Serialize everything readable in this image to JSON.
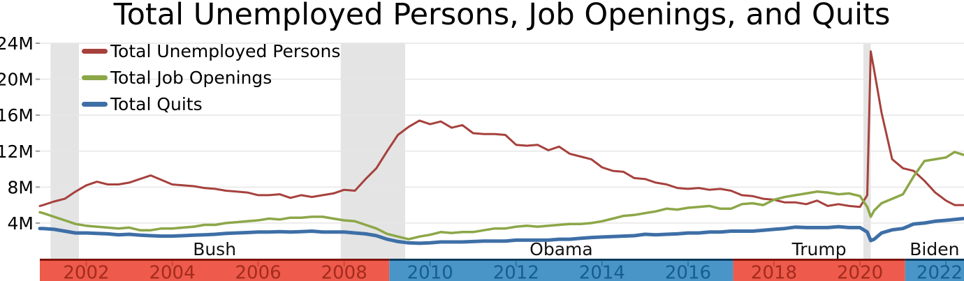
{
  "chart_data": {
    "type": "line",
    "title": "Total Unemployed Persons, Job Openings, and Quits",
    "units": "millions of persons",
    "x_range": [
      2000.92,
      2022.42
    ],
    "y_range": [
      0,
      24
    ],
    "grid": "horizontal",
    "legend_position": "top-left",
    "y_ticks": [
      {
        "value": 4,
        "label": "4M"
      },
      {
        "value": 8,
        "label": "8M"
      },
      {
        "value": 12,
        "label": "12M"
      },
      {
        "value": 16,
        "label": "16M"
      },
      {
        "value": 20,
        "label": "20M"
      },
      {
        "value": 24,
        "label": "24M"
      }
    ],
    "x_ticks": [
      {
        "value": 2002,
        "label": "2002"
      },
      {
        "value": 2004,
        "label": "2004"
      },
      {
        "value": 2006,
        "label": "2006"
      },
      {
        "value": 2008,
        "label": "2008"
      },
      {
        "value": 2010,
        "label": "2010"
      },
      {
        "value": 2012,
        "label": "2012"
      },
      {
        "value": 2014,
        "label": "2014"
      },
      {
        "value": 2016,
        "label": "2016"
      },
      {
        "value": 2018,
        "label": "2018"
      },
      {
        "value": 2020,
        "label": "2020"
      },
      {
        "value": 2022,
        "label": "2022"
      }
    ],
    "x": [
      2000.92,
      2001.0,
      2001.25,
      2001.5,
      2001.75,
      2002.0,
      2002.25,
      2002.5,
      2002.75,
      2003.0,
      2003.25,
      2003.5,
      2003.75,
      2004.0,
      2004.25,
      2004.5,
      2004.75,
      2005.0,
      2005.25,
      2005.5,
      2005.75,
      2006.0,
      2006.25,
      2006.5,
      2006.75,
      2007.0,
      2007.25,
      2007.5,
      2007.75,
      2008.0,
      2008.25,
      2008.5,
      2008.75,
      2009.0,
      2009.25,
      2009.5,
      2009.75,
      2010.0,
      2010.25,
      2010.5,
      2010.75,
      2011.0,
      2011.25,
      2011.5,
      2011.75,
      2012.0,
      2012.25,
      2012.5,
      2012.75,
      2013.0,
      2013.25,
      2013.5,
      2013.75,
      2014.0,
      2014.25,
      2014.5,
      2014.75,
      2015.0,
      2015.25,
      2015.5,
      2015.75,
      2016.0,
      2016.25,
      2016.5,
      2016.75,
      2017.0,
      2017.25,
      2017.5,
      2017.75,
      2018.0,
      2018.25,
      2018.5,
      2018.75,
      2019.0,
      2019.25,
      2019.5,
      2019.75,
      2020.0,
      2020.17,
      2020.25,
      2020.33,
      2020.5,
      2020.75,
      2021.0,
      2021.25,
      2021.5,
      2021.75,
      2022.0,
      2022.2,
      2022.4
    ],
    "series": [
      {
        "name": "Total Unemployed Persons",
        "color": "#A6413D",
        "line_width": 3,
        "values": [
          5.9,
          6.0,
          6.4,
          6.7,
          7.5,
          8.2,
          8.6,
          8.3,
          8.3,
          8.5,
          8.9,
          9.3,
          8.8,
          8.3,
          8.2,
          8.1,
          7.9,
          7.8,
          7.6,
          7.5,
          7.4,
          7.1,
          7.1,
          7.2,
          6.8,
          7.1,
          6.9,
          7.1,
          7.3,
          7.7,
          7.6,
          8.9,
          10.1,
          12.0,
          13.8,
          14.7,
          15.4,
          15.0,
          15.3,
          14.6,
          14.9,
          14.0,
          13.9,
          13.9,
          13.8,
          12.7,
          12.6,
          12.7,
          12.1,
          12.5,
          11.7,
          11.4,
          11.1,
          10.2,
          9.8,
          9.7,
          9.0,
          8.9,
          8.5,
          8.3,
          7.9,
          7.8,
          7.9,
          7.7,
          7.8,
          7.6,
          7.1,
          7.0,
          6.7,
          6.6,
          6.3,
          6.3,
          6.1,
          6.5,
          5.9,
          6.1,
          5.9,
          5.8,
          7.1,
          23.1,
          21.0,
          16.3,
          11.1,
          10.1,
          9.8,
          8.7,
          7.4,
          6.5,
          6.0,
          6.0
        ]
      },
      {
        "name": "Total Job Openings",
        "color": "#8CA748",
        "line_width": 3.5,
        "values": [
          5.2,
          5.1,
          4.7,
          4.3,
          3.9,
          3.7,
          3.6,
          3.5,
          3.4,
          3.5,
          3.2,
          3.2,
          3.4,
          3.4,
          3.5,
          3.6,
          3.8,
          3.8,
          4.0,
          4.1,
          4.2,
          4.3,
          4.5,
          4.4,
          4.6,
          4.6,
          4.7,
          4.7,
          4.5,
          4.3,
          4.2,
          3.8,
          3.4,
          2.8,
          2.5,
          2.2,
          2.5,
          2.7,
          3.0,
          2.9,
          3.0,
          3.0,
          3.2,
          3.4,
          3.4,
          3.6,
          3.7,
          3.6,
          3.7,
          3.8,
          3.9,
          3.9,
          4.0,
          4.2,
          4.5,
          4.8,
          4.9,
          5.1,
          5.3,
          5.6,
          5.5,
          5.7,
          5.8,
          5.9,
          5.6,
          5.6,
          6.1,
          6.2,
          6.0,
          6.6,
          6.9,
          7.1,
          7.3,
          7.5,
          7.4,
          7.2,
          7.3,
          7.0,
          5.8,
          4.7,
          5.4,
          6.2,
          6.7,
          7.2,
          9.2,
          10.9,
          11.1,
          11.3,
          11.9,
          11.6
        ]
      },
      {
        "name": "Total Quits",
        "color": "#3E6FA6",
        "line_width": 5,
        "values": [
          3.4,
          3.4,
          3.3,
          3.1,
          2.9,
          2.9,
          2.85,
          2.8,
          2.7,
          2.75,
          2.65,
          2.6,
          2.55,
          2.55,
          2.6,
          2.65,
          2.7,
          2.75,
          2.85,
          2.9,
          2.95,
          3.0,
          3.0,
          3.05,
          3.0,
          3.05,
          3.1,
          3.0,
          3.0,
          3.0,
          2.9,
          2.8,
          2.6,
          2.2,
          1.95,
          1.8,
          1.75,
          1.8,
          1.9,
          1.9,
          1.9,
          1.95,
          2.0,
          2.0,
          2.0,
          2.1,
          2.1,
          2.1,
          2.1,
          2.2,
          2.2,
          2.3,
          2.4,
          2.45,
          2.5,
          2.55,
          2.6,
          2.75,
          2.7,
          2.75,
          2.8,
          2.9,
          2.9,
          3.0,
          3.0,
          3.1,
          3.1,
          3.1,
          3.2,
          3.3,
          3.4,
          3.55,
          3.5,
          3.5,
          3.5,
          3.6,
          3.5,
          3.5,
          3.0,
          2.05,
          2.2,
          2.9,
          3.25,
          3.4,
          3.9,
          4.0,
          4.2,
          4.3,
          4.4,
          4.5
        ]
      }
    ],
    "recessions": [
      {
        "start": 2001.17,
        "end": 2001.83
      },
      {
        "start": 2007.92,
        "end": 2009.42
      },
      {
        "start": 2020.08,
        "end": 2020.25
      }
    ],
    "presidents": [
      {
        "name": "Bush",
        "party": "R",
        "start": 2000.92,
        "end": 2009.05
      },
      {
        "name": "Obama",
        "party": "D",
        "start": 2009.05,
        "end": 2017.05
      },
      {
        "name": "Trump",
        "party": "R",
        "start": 2017.05,
        "end": 2021.05
      },
      {
        "name": "Biden",
        "party": "D",
        "start": 2021.05,
        "end": 2022.42
      }
    ]
  },
  "colors": {
    "background": "#FFFFFF",
    "grid": "#E6E6E6",
    "axis_tick": "#999999",
    "text": "#111111",
    "recession_band": "#E4E4E4",
    "republican_fill": "#EE5A4B",
    "republican_border": "#7E150B",
    "republican_text": "#A32C1E",
    "republican_tick": "#C8493A",
    "democrat_fill": "#4A95C8",
    "democrat_border": "#0C3B5E",
    "democrat_text": "#155E8E",
    "democrat_tick": "#2D76A6"
  }
}
